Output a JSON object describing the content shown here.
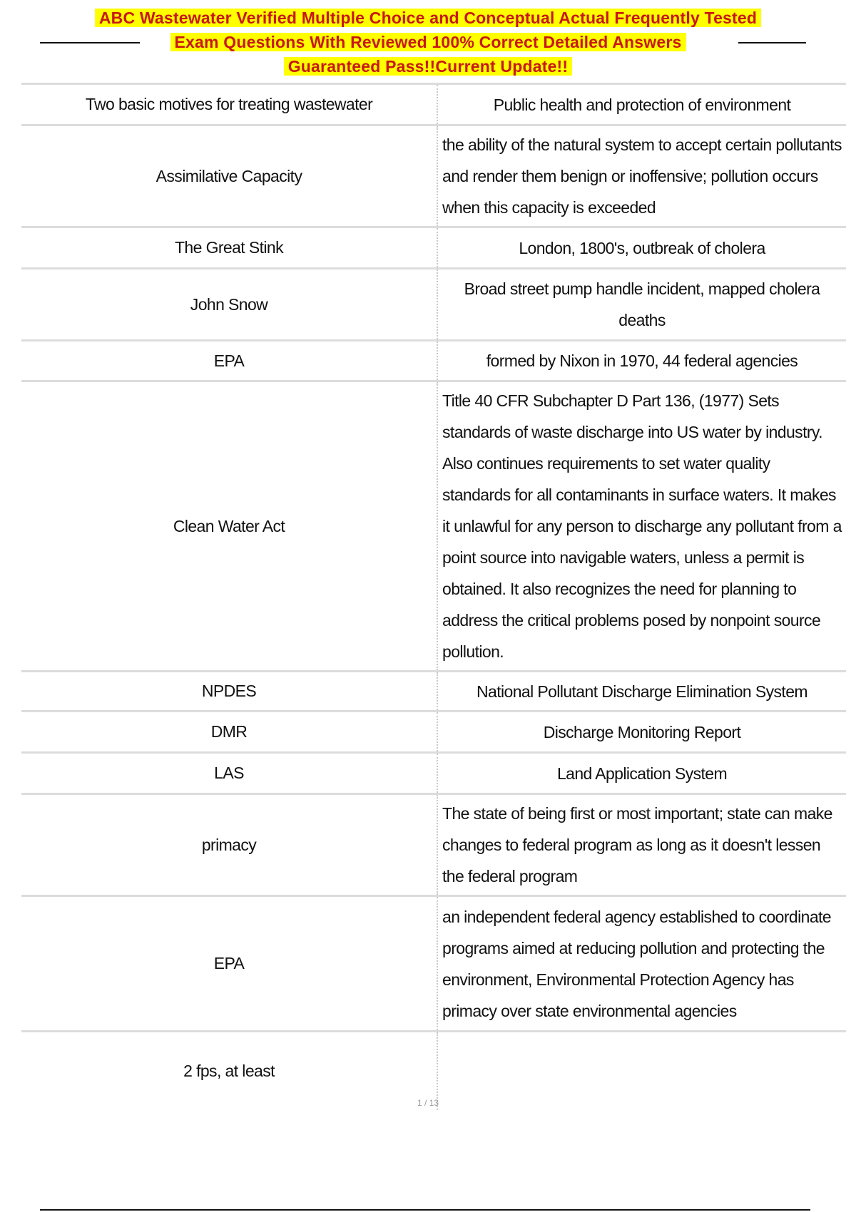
{
  "header": {
    "title_lines": [
      "ABC Wastewater Verified Multiple Choice and Conceptual Actual Frequently Tested",
      "Exam Questions With Reviewed 100% Correct Detailed Answers",
      "Guaranteed Pass!!Current Update!!"
    ],
    "highlight_color": "#ffff00",
    "text_color": "#c8170e"
  },
  "rows": [
    {
      "term": "Two basic motives for treating wastewater",
      "definition": "Public health and protection of environment"
    },
    {
      "term": "Assimilative Capacity",
      "definition": "the ability of the natural system to accept certain pollutants and render them benign or inoffensive; pollution occurs when this capacity is exceeded"
    },
    {
      "term": "The Great Stink",
      "definition": "London, 1800's, outbreak of cholera"
    },
    {
      "term": "John Snow",
      "definition": "Broad street pump handle incident, mapped cholera deaths"
    },
    {
      "term": "EPA",
      "definition": "formed by Nixon in 1970, 44 federal agencies"
    },
    {
      "term": "Clean Water Act",
      "definition": "Title 40 CFR Subchapter D Part 136, (1977) Sets standards of waste discharge into US water by industry. Also continues requirements to set water quality standards for all contaminants in surface waters. It makes it unlawful for any person to discharge any pollutant from a point source into navigable waters, unless a permit is obtained. It also recognizes the need for planning to address the critical problems posed by nonpoint source pollution."
    },
    {
      "term": "NPDES",
      "definition": "National Pollutant Discharge Elimination System"
    },
    {
      "term": "DMR",
      "definition": "Discharge Monitoring Report"
    },
    {
      "term": "LAS",
      "definition": "Land Application System"
    },
    {
      "term": "primacy",
      "definition": "The state of being first or most important; state can make changes to federal program as long as it doesn't lessen the federal program"
    },
    {
      "term": "EPA",
      "definition": "an independent federal agency established to coordinate programs aimed at reducing pollution and protecting the environment, Environmental Protection Agency has primacy over state environmental agencies"
    },
    {
      "term": "2 fps, at least",
      "definition": ""
    }
  ],
  "footer": {
    "page_number": "1 / 13"
  }
}
